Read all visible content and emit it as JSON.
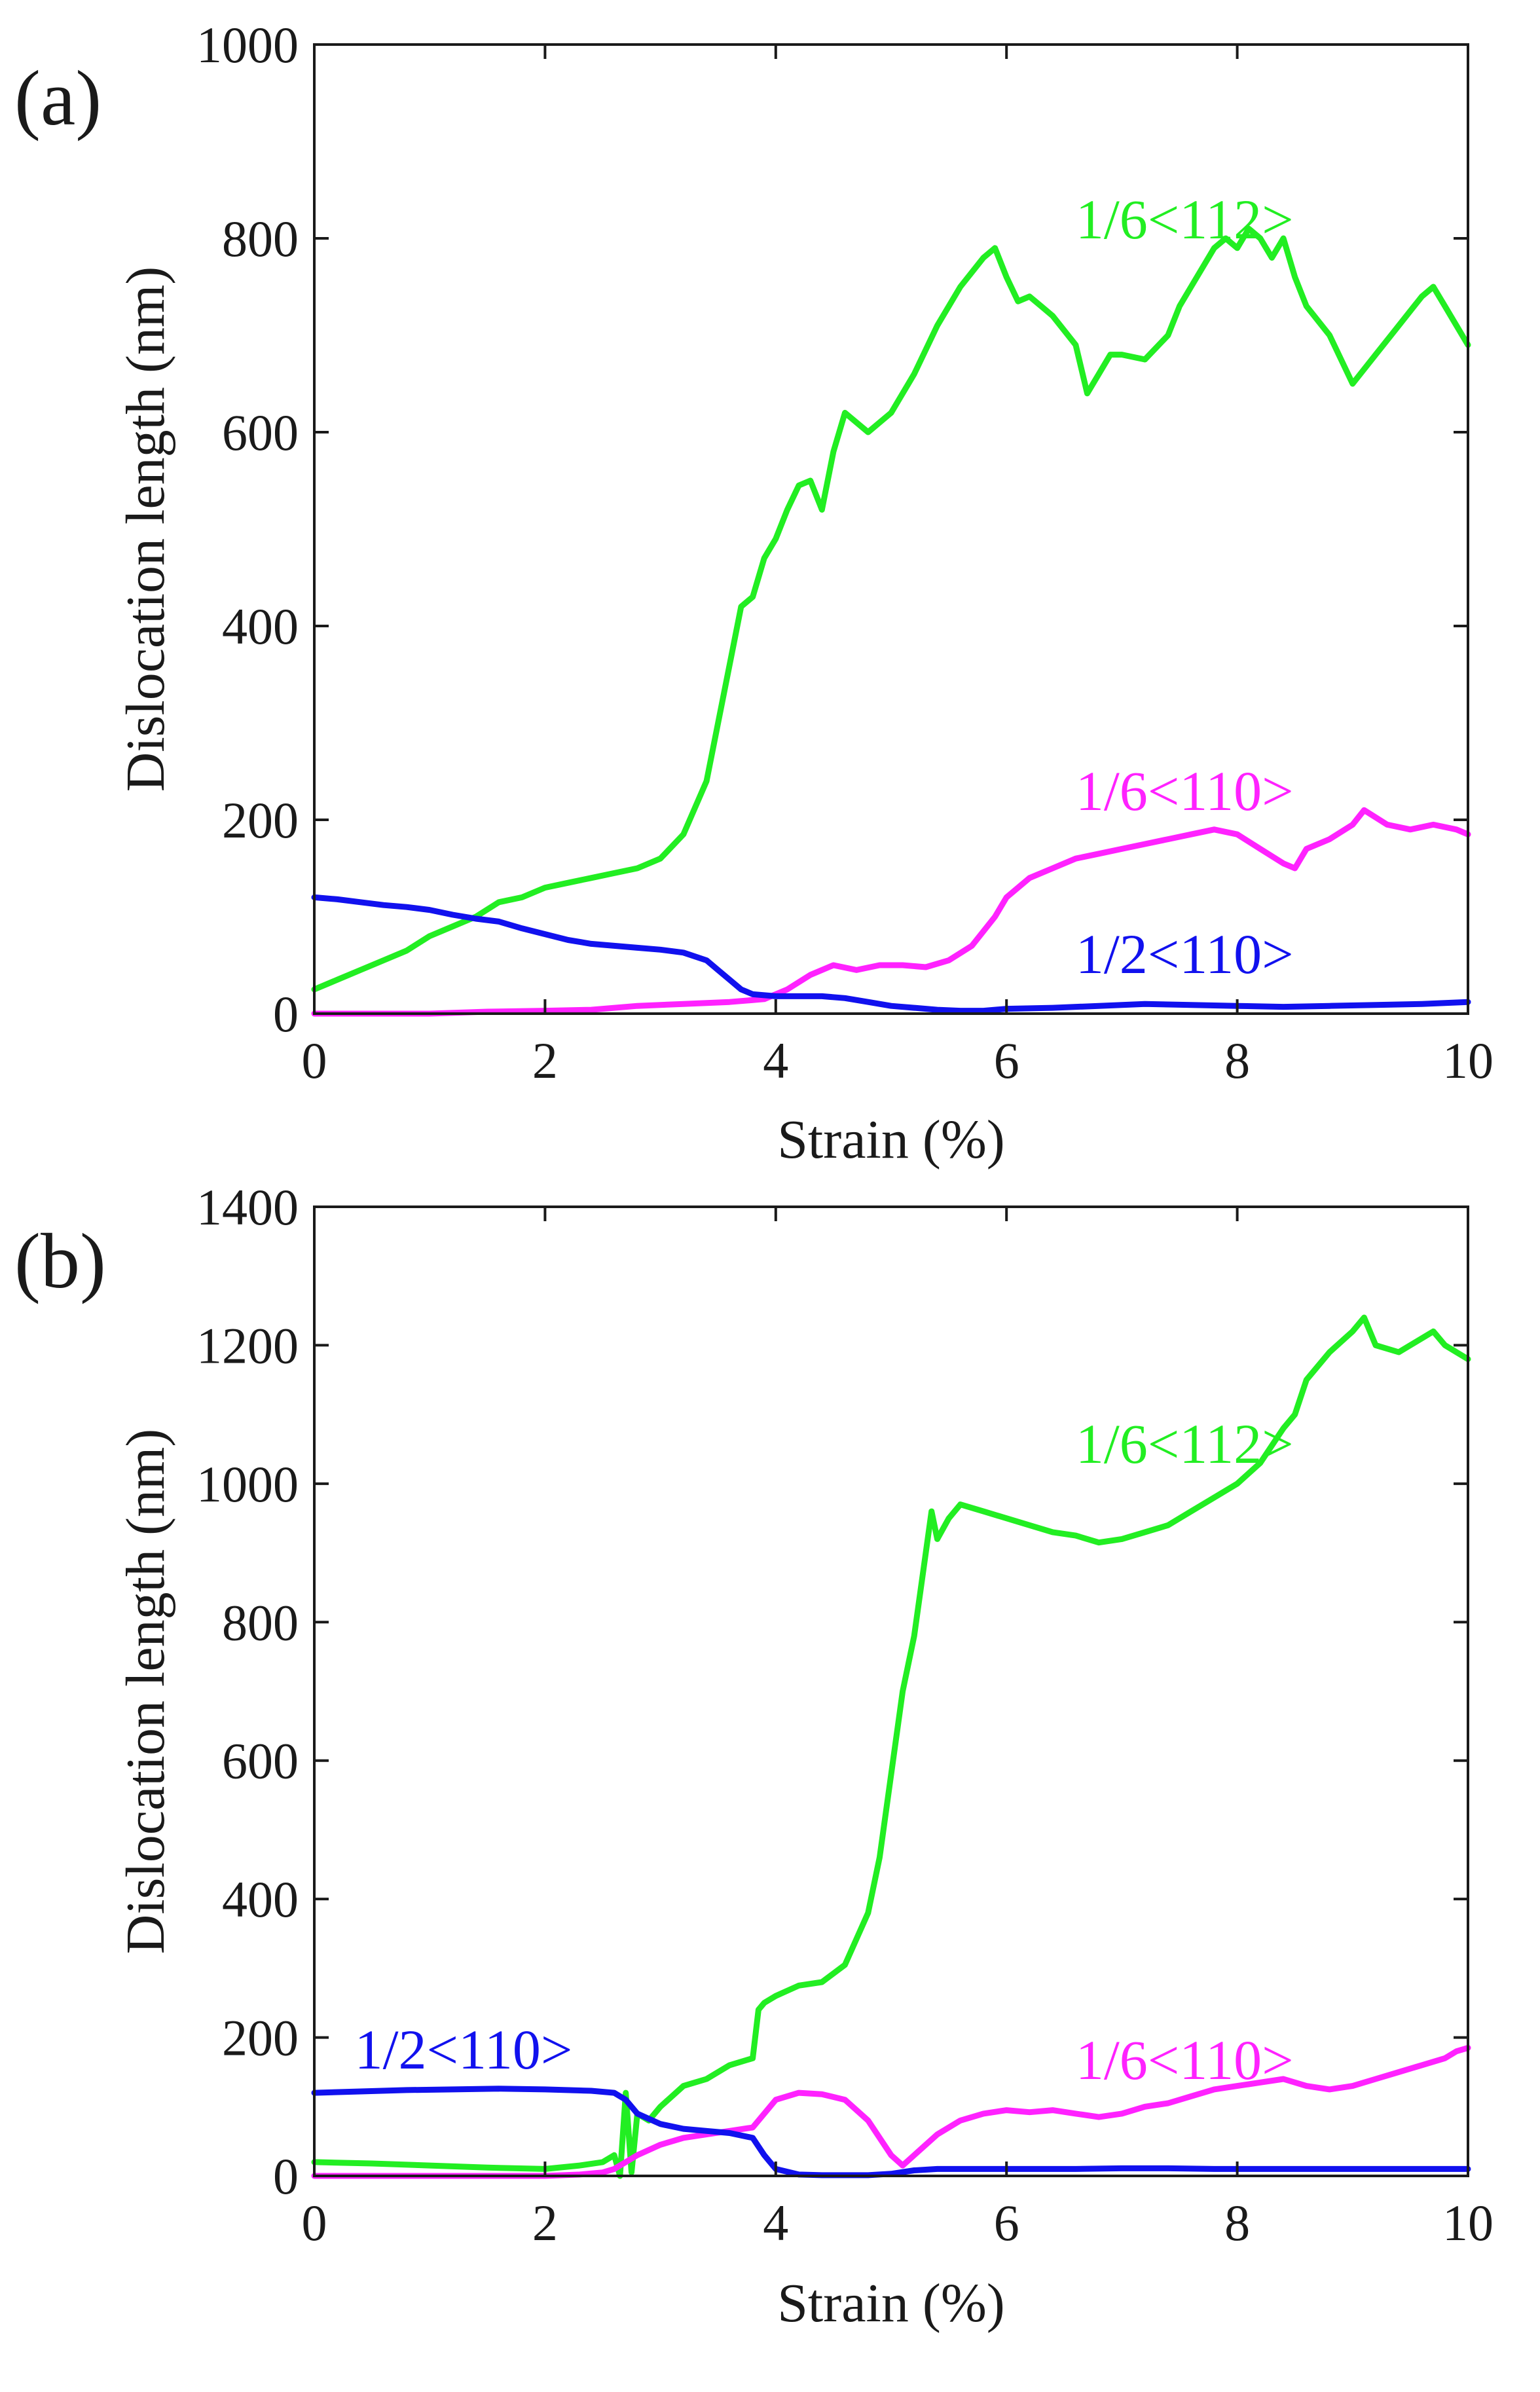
{
  "colors": {
    "green": "#22ee22",
    "magenta": "#ff22ff",
    "blue": "#1111ee",
    "axis": "#1a1a1a"
  },
  "chart_data": [
    {
      "panel_label": "(a)",
      "type": "line",
      "xlabel": "Strain (%)",
      "ylabel": "Dislocation length (nm)",
      "xlim": [
        0,
        10
      ],
      "ylim": [
        0,
        1000
      ],
      "xticks": [
        0,
        2,
        4,
        6,
        8,
        10
      ],
      "yticks": [
        0,
        200,
        400,
        600,
        800,
        1000
      ],
      "xtick_labels": [
        "0",
        "2",
        "4",
        "6",
        "8",
        "10"
      ],
      "ytick_labels": [
        "0",
        "200",
        "400",
        "600",
        "800",
        "1000"
      ],
      "series": [
        {
          "name": "1/6<112>",
          "color": "#22ee22",
          "x": [
            0,
            0.2,
            0.4,
            0.6,
            0.8,
            1.0,
            1.2,
            1.4,
            1.6,
            1.8,
            2.0,
            2.2,
            2.4,
            2.6,
            2.8,
            3.0,
            3.2,
            3.4,
            3.5,
            3.6,
            3.7,
            3.8,
            3.9,
            4.0,
            4.1,
            4.2,
            4.3,
            4.4,
            4.5,
            4.6,
            4.7,
            4.8,
            5.0,
            5.2,
            5.4,
            5.6,
            5.8,
            5.9,
            6.0,
            6.1,
            6.2,
            6.3,
            6.4,
            6.6,
            6.7,
            6.8,
            6.9,
            7.0,
            7.2,
            7.4,
            7.5,
            7.6,
            7.8,
            7.9,
            8.0,
            8.1,
            8.2,
            8.3,
            8.4,
            8.5,
            8.6,
            8.8,
            9.0,
            9.2,
            9.4,
            9.6,
            9.7,
            9.8,
            9.9,
            10.0
          ],
          "y": [
            25,
            35,
            45,
            55,
            65,
            80,
            90,
            100,
            115,
            120,
            130,
            135,
            140,
            145,
            150,
            160,
            185,
            240,
            300,
            360,
            420,
            430,
            470,
            490,
            520,
            545,
            550,
            520,
            580,
            620,
            610,
            600,
            620,
            660,
            710,
            750,
            780,
            790,
            760,
            735,
            740,
            730,
            720,
            690,
            640,
            660,
            680,
            680,
            675,
            700,
            730,
            750,
            790,
            800,
            790,
            810,
            800,
            780,
            800,
            760,
            730,
            700,
            650,
            680,
            710,
            740,
            750,
            730,
            710,
            690
          ]
        },
        {
          "name": "1/6<110>",
          "color": "#ff22ff",
          "x": [
            0,
            0.5,
            1.0,
            1.5,
            2.0,
            2.4,
            2.8,
            3.2,
            3.6,
            3.9,
            4.1,
            4.3,
            4.5,
            4.7,
            4.9,
            5.1,
            5.3,
            5.5,
            5.7,
            5.9,
            6.0,
            6.2,
            6.4,
            6.6,
            6.8,
            7.0,
            7.2,
            7.4,
            7.6,
            7.8,
            8.0,
            8.2,
            8.4,
            8.5,
            8.6,
            8.8,
            9.0,
            9.1,
            9.3,
            9.5,
            9.7,
            9.9,
            10.0
          ],
          "y": [
            0,
            0,
            0,
            2,
            3,
            4,
            8,
            10,
            12,
            15,
            25,
            40,
            50,
            45,
            50,
            50,
            48,
            55,
            70,
            100,
            120,
            140,
            150,
            160,
            165,
            170,
            175,
            180,
            185,
            190,
            185,
            170,
            155,
            150,
            170,
            180,
            195,
            210,
            195,
            190,
            195,
            190,
            185
          ]
        },
        {
          "name": "1/2<110>",
          "color": "#1111ee",
          "x": [
            0,
            0.2,
            0.4,
            0.6,
            0.8,
            1.0,
            1.2,
            1.4,
            1.6,
            1.8,
            2.0,
            2.2,
            2.4,
            2.6,
            2.8,
            3.0,
            3.2,
            3.4,
            3.5,
            3.6,
            3.7,
            3.8,
            4.0,
            4.2,
            4.4,
            4.6,
            4.8,
            5.0,
            5.2,
            5.4,
            5.6,
            5.8,
            6.0,
            6.4,
            6.8,
            7.2,
            7.6,
            8.0,
            8.4,
            8.8,
            9.2,
            9.6,
            10.0
          ],
          "y": [
            120,
            118,
            115,
            112,
            110,
            107,
            102,
            98,
            95,
            88,
            82,
            76,
            72,
            70,
            68,
            66,
            63,
            55,
            45,
            35,
            25,
            20,
            18,
            18,
            18,
            16,
            12,
            8,
            6,
            4,
            3,
            3,
            5,
            6,
            8,
            10,
            9,
            8,
            7,
            8,
            9,
            10,
            12
          ]
        }
      ],
      "annotations": [
        {
          "text": "1/6<112>",
          "color": "#22ee22",
          "x": 6.6,
          "y": 800
        },
        {
          "text": "1/6<110>",
          "color": "#ff22ff",
          "x": 6.6,
          "y": 210
        },
        {
          "text": "1/2<110>",
          "color": "#1111ee",
          "x": 6.6,
          "y": 42
        }
      ]
    },
    {
      "panel_label": "(b)",
      "type": "line",
      "xlabel": "Strain (%)",
      "ylabel": "Dislocation length (nm)",
      "xlim": [
        0,
        10
      ],
      "ylim": [
        0,
        1400
      ],
      "xticks": [
        0,
        2,
        4,
        6,
        8,
        10
      ],
      "yticks": [
        0,
        200,
        400,
        600,
        800,
        1000,
        1200,
        1400
      ],
      "xtick_labels": [
        "0",
        "2",
        "4",
        "6",
        "8",
        "10"
      ],
      "ytick_labels": [
        "0",
        "200",
        "400",
        "600",
        "800",
        "1000",
        "1200",
        "1400"
      ],
      "series": [
        {
          "name": "1/6<112>",
          "color": "#22ee22",
          "x": [
            0,
            0.5,
            1.0,
            1.5,
            2.0,
            2.3,
            2.5,
            2.6,
            2.65,
            2.7,
            2.75,
            2.8,
            2.9,
            3.0,
            3.2,
            3.4,
            3.6,
            3.8,
            3.85,
            3.9,
            4.0,
            4.2,
            4.4,
            4.6,
            4.8,
            4.9,
            5.0,
            5.1,
            5.2,
            5.3,
            5.35,
            5.4,
            5.5,
            5.6,
            5.8,
            6.0,
            6.2,
            6.4,
            6.6,
            6.8,
            7.0,
            7.2,
            7.4,
            7.6,
            7.8,
            8.0,
            8.2,
            8.4,
            8.5,
            8.6,
            8.8,
            9.0,
            9.1,
            9.2,
            9.4,
            9.6,
            9.7,
            9.8,
            9.9,
            10.0
          ],
          "y": [
            20,
            18,
            15,
            12,
            10,
            15,
            20,
            30,
            0,
            120,
            5,
            90,
            80,
            100,
            130,
            140,
            160,
            170,
            240,
            250,
            260,
            275,
            280,
            305,
            380,
            460,
            580,
            700,
            780,
            900,
            960,
            920,
            950,
            970,
            960,
            950,
            940,
            930,
            925,
            915,
            920,
            930,
            940,
            960,
            980,
            1000,
            1030,
            1080,
            1100,
            1150,
            1190,
            1220,
            1240,
            1200,
            1190,
            1210,
            1220,
            1200,
            1190,
            1180
          ]
        },
        {
          "name": "1/6<110>",
          "color": "#ff22ff",
          "x": [
            0,
            0.5,
            1.0,
            1.5,
            2.0,
            2.3,
            2.5,
            2.6,
            2.8,
            3.0,
            3.2,
            3.4,
            3.6,
            3.8,
            3.9,
            4.0,
            4.2,
            4.4,
            4.6,
            4.8,
            5.0,
            5.1,
            5.2,
            5.4,
            5.6,
            5.8,
            6.0,
            6.2,
            6.4,
            6.6,
            6.8,
            7.0,
            7.2,
            7.4,
            7.6,
            7.8,
            8.0,
            8.2,
            8.4,
            8.6,
            8.8,
            9.0,
            9.2,
            9.4,
            9.6,
            9.8,
            9.9,
            10.0
          ],
          "y": [
            0,
            0,
            0,
            0,
            0,
            2,
            5,
            10,
            30,
            45,
            55,
            60,
            65,
            70,
            90,
            110,
            120,
            118,
            110,
            80,
            30,
            15,
            30,
            60,
            80,
            90,
            95,
            92,
            95,
            90,
            85,
            90,
            100,
            105,
            115,
            125,
            130,
            135,
            140,
            130,
            125,
            130,
            140,
            150,
            160,
            170,
            180,
            185
          ]
        },
        {
          "name": "1/2<110>",
          "color": "#1111ee",
          "x": [
            0,
            0.4,
            0.8,
            1.2,
            1.6,
            2.0,
            2.4,
            2.6,
            2.7,
            2.8,
            3.0,
            3.2,
            3.4,
            3.6,
            3.8,
            3.9,
            4.0,
            4.2,
            4.4,
            4.6,
            4.8,
            5.0,
            5.2,
            5.4,
            5.8,
            6.2,
            6.6,
            7.0,
            7.4,
            7.8,
            8.2,
            8.6,
            9.0,
            9.4,
            9.8,
            10.0
          ],
          "y": [
            120,
            122,
            124,
            125,
            126,
            125,
            123,
            120,
            110,
            90,
            75,
            68,
            65,
            62,
            55,
            30,
            10,
            2,
            1,
            1,
            1,
            3,
            8,
            10,
            10,
            10,
            10,
            11,
            11,
            10,
            10,
            10,
            10,
            10,
            10,
            10
          ]
        }
      ],
      "annotations": [
        {
          "text": "1/6<112>",
          "color": "#22ee22",
          "x": 6.6,
          "y": 1030
        },
        {
          "text": "1/6<110>",
          "color": "#ff22ff",
          "x": 6.6,
          "y": 140
        },
        {
          "text": "1/2<110>",
          "color": "#1111ee",
          "x": 0.35,
          "y": 155
        }
      ]
    }
  ]
}
